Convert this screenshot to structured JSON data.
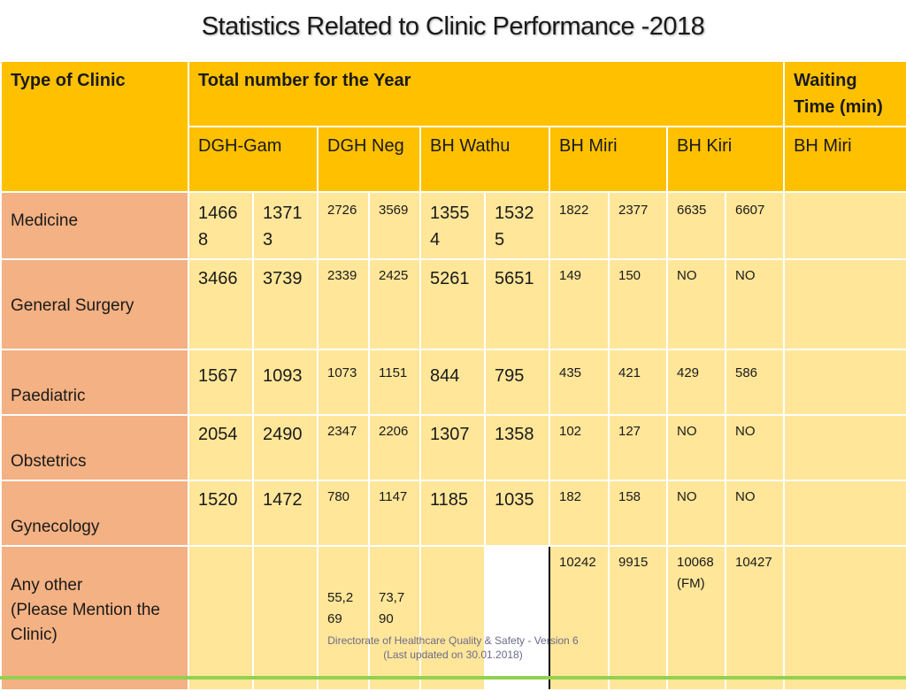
{
  "title": "Statistics Related to Clinic Performance -2018",
  "header": {
    "type_of_clinic": "Type of Clinic",
    "total_number": "Total number for the  Year",
    "waiting_time": "Waiting Time (min)",
    "hospitals": [
      "DGH-Gam",
      "DGH Neg",
      "BH Wathu",
      "BH Miri",
      "BH Kiri"
    ],
    "waiting_hospital": "BH Miri"
  },
  "rows": [
    {
      "label": "Medicine",
      "values": [
        "14668",
        "13713",
        "2726",
        "3569",
        "13554",
        "15325",
        "1822",
        "2377",
        "6635",
        "6607"
      ],
      "waiting": ""
    },
    {
      "label": "General Surgery",
      "values": [
        "3466",
        "3739",
        "2339",
        "2425",
        "5261",
        "5651",
        "149",
        "150",
        "NO",
        "NO"
      ],
      "waiting": ""
    },
    {
      "label": "Paediatric",
      "values": [
        "1567",
        "1093",
        "1073",
        "1151",
        "844",
        "795",
        "435",
        "421",
        "429",
        "586"
      ],
      "waiting": ""
    },
    {
      "label": "Obstetrics",
      "values": [
        "2054",
        "2490",
        "2347",
        "2206",
        "1307",
        "1358",
        "102",
        "127",
        "NO",
        "NO"
      ],
      "waiting": ""
    },
    {
      "label": "Gynecology",
      "values": [
        "1520",
        "1472",
        "780",
        "1147",
        "1185",
        "1035",
        "182",
        "158",
        "NO",
        "NO"
      ],
      "waiting": ""
    },
    {
      "label": "Any other\n(Please Mention the Clinic)",
      "values": [
        "",
        "",
        "55,269",
        "73,790",
        "",
        "",
        "10242",
        "9915",
        "10068\n(FM)",
        "10427"
      ],
      "waiting": ""
    }
  ],
  "footer": {
    "line1": "Directorate of Healthcare Quality & Safety - Version 6",
    "line2": "(Last updated on 30.01.2018)"
  },
  "colors": {
    "header_orange": "#FFC000",
    "label_salmon": "#F4B183",
    "cell_yellow": "#FFE699",
    "bottom_green": "#92D050"
  }
}
